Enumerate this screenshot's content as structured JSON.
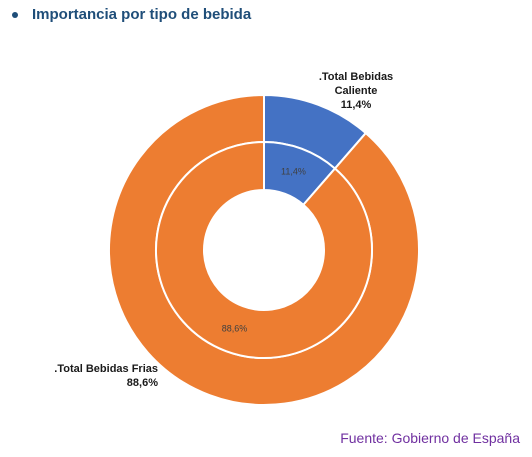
{
  "header": {
    "title": "Importancia por tipo de bebida"
  },
  "source": "Fuente: Gobierno de España",
  "colors": {
    "caliente": "#4472c4",
    "frias": "#ed7d31",
    "title": "#1f4e79",
    "source": "#7030a0"
  },
  "chart_data": {
    "type": "pie",
    "variant": "doughnut",
    "title": "Importancia por tipo de bebida",
    "rings": [
      {
        "ring": "outer",
        "slices": [
          {
            "label_line1": ".Total Bebidas",
            "label_line2": "Caliente",
            "value": 11.4,
            "value_label": "11,4%",
            "color": "#4472c4"
          },
          {
            "label_line1": ".Total Bebidas Frias",
            "label_line2": "",
            "value": 88.6,
            "value_label": "88,6%",
            "color": "#ed7d31"
          }
        ]
      },
      {
        "ring": "inner",
        "slices": [
          {
            "value": 11.4,
            "value_label": "11,4%",
            "color": "#4472c4"
          },
          {
            "value": 88.6,
            "value_label": "88,6%",
            "color": "#ed7d31"
          }
        ]
      }
    ]
  }
}
